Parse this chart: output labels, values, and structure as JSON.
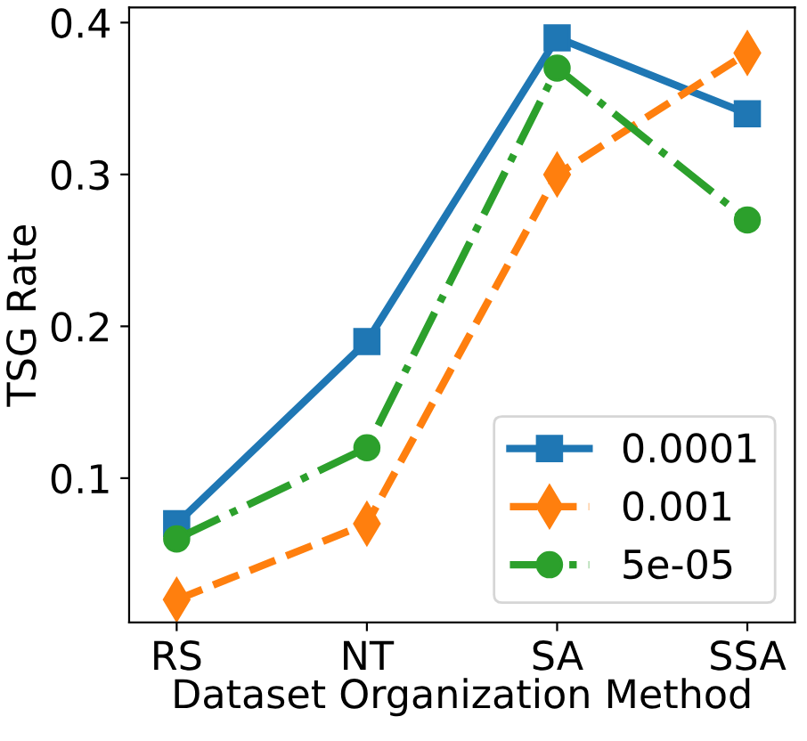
{
  "chart_data": {
    "type": "line",
    "xlabel": "Dataset Organization Method",
    "ylabel": "TSG Rate",
    "categories": [
      "RS",
      "NT",
      "SA",
      "SSA"
    ],
    "series": [
      {
        "name": "0.0001",
        "color": "#1f77b4",
        "values": [
          0.07,
          0.19,
          0.39,
          0.34
        ],
        "marker": "square",
        "line_style": "solid"
      },
      {
        "name": "0.001",
        "color": "#ff7f0e",
        "values": [
          0.02,
          0.07,
          0.3,
          0.38
        ],
        "marker": "diamond",
        "line_style": "dashed"
      },
      {
        "name": "5e-05",
        "color": "#2ca02c",
        "values": [
          0.06,
          0.12,
          0.37,
          0.27
        ],
        "marker": "circle",
        "line_style": "dashdot"
      }
    ],
    "ylim": [
      0.005,
      0.41
    ],
    "yticks": [
      {
        "value": 0.1,
        "label": "0.1"
      },
      {
        "value": 0.2,
        "label": "0.2"
      },
      {
        "value": 0.3,
        "label": "0.3"
      },
      {
        "value": 0.4,
        "label": "0.4"
      }
    ],
    "grid": false,
    "legend": "bottom right"
  }
}
